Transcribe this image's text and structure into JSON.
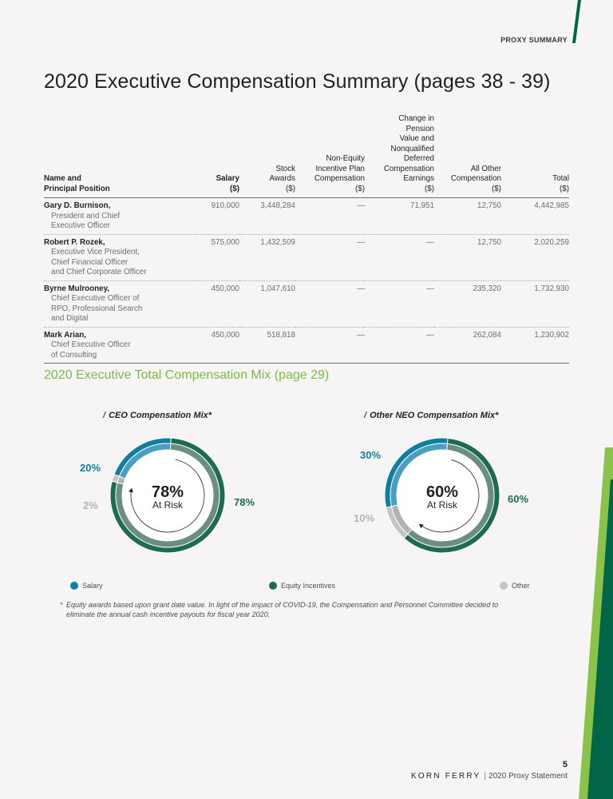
{
  "header": {
    "section_label": "PROXY SUMMARY"
  },
  "colors": {
    "salary": "#0f7ea3",
    "salary_inner": "#4a9fbf",
    "equity": "#1d6b55",
    "equity_inner": "#6b8f7f",
    "other": "#c4c4c4",
    "other_inner": "#b3b3b3",
    "section_green": "#78be43",
    "brand_dark_green": "#006647"
  },
  "summary": {
    "title": "2020 Executive Compensation Summary (pages 38 - 39)",
    "columns": [
      {
        "lines": [
          "Name and",
          "Principal Position"
        ]
      },
      {
        "lines": [
          "Salary",
          "($)"
        ]
      },
      {
        "lines": [
          "Stock",
          "Awards",
          "($)"
        ]
      },
      {
        "lines": [
          "Non-Equity",
          "Incentive Plan",
          "Compensation",
          "($)"
        ]
      },
      {
        "lines": [
          "Change in",
          "Pension",
          "Value and",
          "Nonqualified",
          "Deferred",
          "Compensation",
          "Earnings",
          "($)"
        ]
      },
      {
        "lines": [
          "All Other",
          "Compensation",
          "($)"
        ]
      },
      {
        "lines": [
          "Total",
          "($)"
        ]
      }
    ],
    "rows": [
      {
        "name": "Gary D. Burnison,",
        "position_lines": [
          "President and Chief",
          "Executive Officer"
        ],
        "salary": "910,000",
        "stock_awards": "3,448,284",
        "non_equity": "—",
        "pension": "71,951",
        "all_other": "12,750",
        "total": "4,442,985"
      },
      {
        "name": "Robert P. Rozek,",
        "position_lines": [
          "Executive Vice President,",
          "Chief Financial Officer",
          "and Chief Corporate Officer"
        ],
        "salary": "575,000",
        "stock_awards": "1,432,509",
        "non_equity": "—",
        "pension": "—",
        "all_other": "12,750",
        "total": "2,020,259"
      },
      {
        "name": "Byrne Mulrooney,",
        "position_lines": [
          "Chief Executive Officer of",
          "RPO, Professional Search",
          "and Digital"
        ],
        "salary": "450,000",
        "stock_awards": "1,047,610",
        "non_equity": "—",
        "pension": "—",
        "all_other": "235,320",
        "total": "1,732,930"
      },
      {
        "name": "Mark Arian,",
        "position_lines": [
          "Chief Executive Officer",
          "of Consulting"
        ],
        "salary": "450,000",
        "stock_awards": "518,818",
        "non_equity": "—",
        "pension": "—",
        "all_other": "262,084",
        "total": "1,230,902"
      }
    ]
  },
  "mix_section": {
    "title": "2020 Executive Total Compensation Mix (page 29)"
  },
  "chart_data": [
    {
      "type": "pie",
      "title": "CEO Compensation Mix*",
      "categories": [
        "Salary",
        "Equity Incentives",
        "Other"
      ],
      "values": [
        20,
        78,
        2
      ],
      "labels": [
        "20%",
        "78%",
        "2%"
      ],
      "center_value": "78%",
      "center_label": "At Risk",
      "legend_position": "bottom"
    },
    {
      "type": "pie",
      "title": "Other NEO Compensation Mix*",
      "categories": [
        "Salary",
        "Equity Incentives",
        "Other"
      ],
      "values": [
        30,
        60,
        10
      ],
      "labels": [
        "30%",
        "60%",
        "10%"
      ],
      "center_value": "60%",
      "center_label": "At Risk",
      "legend_position": "bottom"
    }
  ],
  "legend": {
    "items": [
      "Salary",
      "Equity Incentives",
      "Other"
    ]
  },
  "footnote": {
    "marker": "*",
    "text": "Equity awards based upon grant date value. In light of the impact of COVID-19, the Compensation and Personnel Committee decided to eliminate the annual cash incentive payouts for fiscal year 2020."
  },
  "footer": {
    "page_number": "5",
    "brand": "KORN FERRY",
    "separator": "|",
    "doc_title": "2020 Proxy Statement"
  },
  "chart_marker": "/"
}
